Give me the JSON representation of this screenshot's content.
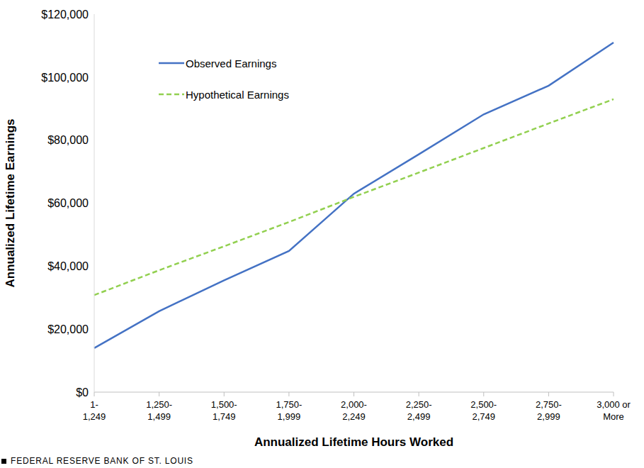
{
  "chart_data": {
    "type": "line",
    "x_label": "Annualized Lifetime Hours Worked",
    "y_label": "Annualized Lifetime Earnings",
    "source": "FEDERAL RESERVE BANK OF ST. LOUIS",
    "categories": [
      "1-\n1,249",
      "1,250-\n1,499",
      "1,500-\n1,749",
      "1,750-\n1,999",
      "2,000-\n2,249",
      "2,250-\n2,499",
      "2,500-\n2,749",
      "2,750-\n2,999",
      "3,000 or\nMore"
    ],
    "series": [
      {
        "name": "Observed Earnings",
        "color": "#4472c4",
        "line_style": "solid",
        "values": [
          14000,
          25700,
          35500,
          44800,
          63000,
          75500,
          88200,
          97300,
          111000
        ]
      },
      {
        "name": "Hypothetical Earnings",
        "color": "#92d050",
        "line_style": "dashed",
        "values": [
          30800,
          38700,
          46300,
          54000,
          62000,
          69700,
          77500,
          85300,
          93000
        ]
      }
    ],
    "ylim": [
      0,
      120000
    ],
    "yticks": [
      {
        "value": 0,
        "label": "$0"
      },
      {
        "value": 20000,
        "label": "$20,000"
      },
      {
        "value": 40000,
        "label": "$40,000"
      },
      {
        "value": 60000,
        "label": "$60,000"
      },
      {
        "value": 80000,
        "label": "$80,000"
      },
      {
        "value": 100000,
        "label": "$100,000"
      },
      {
        "value": 120000,
        "label": "$120,000"
      }
    ],
    "grid": false,
    "legend": "upper left"
  }
}
